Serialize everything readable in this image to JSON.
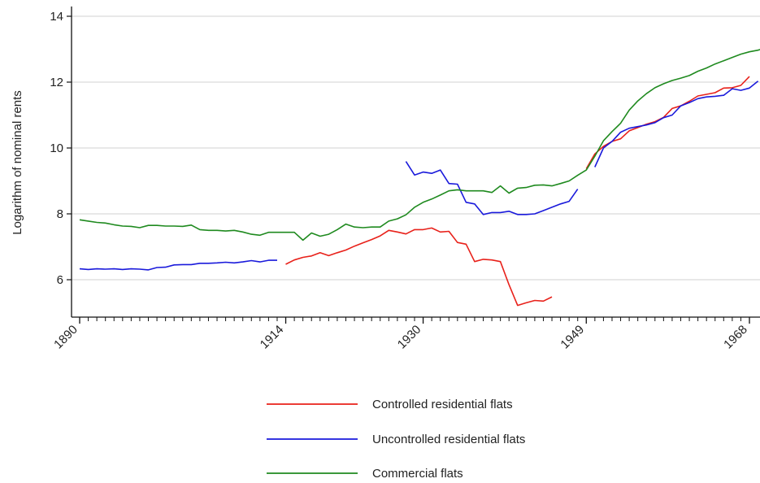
{
  "chart_data": {
    "type": "line",
    "title": "",
    "xlabel": "",
    "ylabel": "Logarithm of nominal rents",
    "xlim": [
      1890,
      1968
    ],
    "ylim": [
      5,
      14
    ],
    "x_ticks": [
      1890,
      1914,
      1930,
      1949,
      1968
    ],
    "y_ticks": [
      6,
      8,
      10,
      12,
      14
    ],
    "grid": "horizontal",
    "legend_position": "bottom",
    "series": [
      {
        "name": "Controlled residential flats",
        "color": "#e8211a",
        "segments": [
          [
            [
              1914,
              6.47
            ],
            [
              1915,
              6.6
            ],
            [
              1916,
              6.68
            ],
            [
              1917,
              6.72
            ],
            [
              1918,
              6.82
            ],
            [
              1919,
              6.73
            ],
            [
              1920,
              6.82
            ],
            [
              1921,
              6.9
            ],
            [
              1922,
              7.02
            ],
            [
              1923,
              7.12
            ],
            [
              1924,
              7.22
            ],
            [
              1925,
              7.33
            ],
            [
              1926,
              7.5
            ],
            [
              1927,
              7.45
            ],
            [
              1928,
              7.39
            ],
            [
              1929,
              7.52
            ],
            [
              1930,
              7.52
            ],
            [
              1931,
              7.57
            ],
            [
              1932,
              7.45
            ],
            [
              1933,
              7.47
            ],
            [
              1934,
              7.13
            ],
            [
              1935,
              7.08
            ],
            [
              1936,
              6.55
            ],
            [
              1937,
              6.62
            ],
            [
              1938,
              6.6
            ],
            [
              1939,
              6.55
            ],
            [
              1940,
              5.85
            ],
            [
              1941,
              5.22
            ],
            [
              1942,
              5.3
            ],
            [
              1943,
              5.37
            ],
            [
              1944,
              5.35
            ],
            [
              1945,
              5.48
            ]
          ],
          [
            [
              1949,
              9.37
            ],
            [
              1950,
              9.82
            ],
            [
              1951,
              10.05
            ],
            [
              1952,
              10.2
            ],
            [
              1953,
              10.28
            ],
            [
              1954,
              10.52
            ],
            [
              1955,
              10.62
            ],
            [
              1956,
              10.72
            ],
            [
              1957,
              10.8
            ],
            [
              1958,
              10.93
            ],
            [
              1959,
              11.2
            ],
            [
              1960,
              11.28
            ],
            [
              1961,
              11.42
            ],
            [
              1962,
              11.58
            ],
            [
              1963,
              11.63
            ],
            [
              1964,
              11.68
            ],
            [
              1965,
              11.82
            ],
            [
              1966,
              11.83
            ],
            [
              1967,
              11.9
            ],
            [
              1968,
              12.17
            ]
          ]
        ]
      },
      {
        "name": "Uncontrolled residential flats",
        "color": "#1a1adb",
        "segments": [
          [
            [
              1890,
              6.33
            ],
            [
              1891,
              6.31
            ],
            [
              1892,
              6.33
            ],
            [
              1893,
              6.32
            ],
            [
              1894,
              6.33
            ],
            [
              1895,
              6.31
            ],
            [
              1896,
              6.33
            ],
            [
              1897,
              6.32
            ],
            [
              1898,
              6.3
            ],
            [
              1899,
              6.37
            ],
            [
              1900,
              6.38
            ],
            [
              1901,
              6.45
            ],
            [
              1902,
              6.46
            ],
            [
              1903,
              6.46
            ],
            [
              1904,
              6.5
            ],
            [
              1905,
              6.5
            ],
            [
              1906,
              6.51
            ],
            [
              1907,
              6.53
            ],
            [
              1908,
              6.51
            ],
            [
              1909,
              6.54
            ],
            [
              1910,
              6.58
            ],
            [
              1911,
              6.54
            ],
            [
              1912,
              6.59
            ],
            [
              1913,
              6.59
            ]
          ],
          [
            [
              1928,
              9.59
            ],
            [
              1929,
              9.18
            ],
            [
              1930,
              9.27
            ],
            [
              1931,
              9.23
            ],
            [
              1932,
              9.33
            ],
            [
              1933,
              8.92
            ],
            [
              1934,
              8.9
            ],
            [
              1935,
              8.35
            ],
            [
              1936,
              8.3
            ],
            [
              1937,
              7.98
            ],
            [
              1938,
              8.04
            ],
            [
              1939,
              8.04
            ],
            [
              1940,
              8.08
            ],
            [
              1941,
              7.98
            ],
            [
              1942,
              7.98
            ],
            [
              1943,
              8.0
            ],
            [
              1944,
              8.1
            ],
            [
              1945,
              8.2
            ],
            [
              1946,
              8.3
            ],
            [
              1947,
              8.38
            ],
            [
              1948,
              8.75
            ]
          ],
          [
            [
              1950,
              9.42
            ],
            [
              1951,
              10.0
            ],
            [
              1952,
              10.2
            ],
            [
              1953,
              10.48
            ],
            [
              1954,
              10.6
            ],
            [
              1955,
              10.65
            ],
            [
              1956,
              10.7
            ],
            [
              1957,
              10.77
            ],
            [
              1958,
              10.92
            ],
            [
              1959,
              11.0
            ],
            [
              1960,
              11.28
            ],
            [
              1961,
              11.38
            ],
            [
              1962,
              11.5
            ],
            [
              1963,
              11.55
            ],
            [
              1964,
              11.57
            ],
            [
              1965,
              11.6
            ],
            [
              1966,
              11.8
            ],
            [
              1967,
              11.75
            ],
            [
              1968,
              11.82
            ],
            [
              1969,
              12.03
            ]
          ]
        ]
      },
      {
        "name": "Commercial flats",
        "color": "#1f8a1f",
        "segments": [
          [
            [
              1890,
              7.82
            ],
            [
              1891,
              7.78
            ],
            [
              1892,
              7.74
            ],
            [
              1893,
              7.72
            ],
            [
              1894,
              7.67
            ],
            [
              1895,
              7.63
            ],
            [
              1896,
              7.62
            ],
            [
              1897,
              7.58
            ],
            [
              1898,
              7.65
            ],
            [
              1899,
              7.65
            ],
            [
              1900,
              7.63
            ],
            [
              1901,
              7.63
            ],
            [
              1902,
              7.62
            ],
            [
              1903,
              7.66
            ],
            [
              1904,
              7.52
            ],
            [
              1905,
              7.5
            ],
            [
              1906,
              7.5
            ],
            [
              1907,
              7.48
            ],
            [
              1908,
              7.5
            ],
            [
              1909,
              7.45
            ],
            [
              1910,
              7.38
            ],
            [
              1911,
              7.35
            ],
            [
              1912,
              7.44
            ],
            [
              1913,
              7.44
            ],
            [
              1914,
              7.44
            ],
            [
              1915,
              7.44
            ],
            [
              1916,
              7.2
            ],
            [
              1917,
              7.42
            ],
            [
              1918,
              7.32
            ],
            [
              1919,
              7.38
            ],
            [
              1920,
              7.52
            ],
            [
              1921,
              7.69
            ],
            [
              1922,
              7.6
            ],
            [
              1923,
              7.58
            ],
            [
              1924,
              7.6
            ],
            [
              1925,
              7.6
            ],
            [
              1926,
              7.78
            ],
            [
              1927,
              7.85
            ],
            [
              1928,
              7.97
            ],
            [
              1929,
              8.2
            ],
            [
              1930,
              8.35
            ],
            [
              1931,
              8.45
            ],
            [
              1932,
              8.57
            ],
            [
              1933,
              8.7
            ],
            [
              1934,
              8.73
            ],
            [
              1935,
              8.7
            ],
            [
              1936,
              8.7
            ],
            [
              1937,
              8.7
            ],
            [
              1938,
              8.65
            ],
            [
              1939,
              8.85
            ],
            [
              1940,
              8.63
            ],
            [
              1941,
              8.78
            ],
            [
              1942,
              8.8
            ],
            [
              1943,
              8.87
            ],
            [
              1944,
              8.88
            ],
            [
              1945,
              8.85
            ],
            [
              1946,
              8.92
            ],
            [
              1947,
              9.0
            ],
            [
              1948,
              9.17
            ],
            [
              1949,
              9.33
            ],
            [
              1950,
              9.75
            ],
            [
              1951,
              10.22
            ],
            [
              1952,
              10.5
            ],
            [
              1953,
              10.75
            ],
            [
              1954,
              11.15
            ],
            [
              1955,
              11.43
            ],
            [
              1956,
              11.65
            ],
            [
              1957,
              11.83
            ],
            [
              1958,
              11.95
            ],
            [
              1959,
              12.05
            ],
            [
              1960,
              12.12
            ],
            [
              1961,
              12.2
            ],
            [
              1962,
              12.33
            ],
            [
              1963,
              12.43
            ],
            [
              1964,
              12.55
            ],
            [
              1965,
              12.65
            ],
            [
              1966,
              12.75
            ],
            [
              1967,
              12.85
            ],
            [
              1968,
              12.92
            ],
            [
              1969,
              12.97
            ],
            [
              1970,
              13.05
            ]
          ]
        ]
      }
    ]
  }
}
